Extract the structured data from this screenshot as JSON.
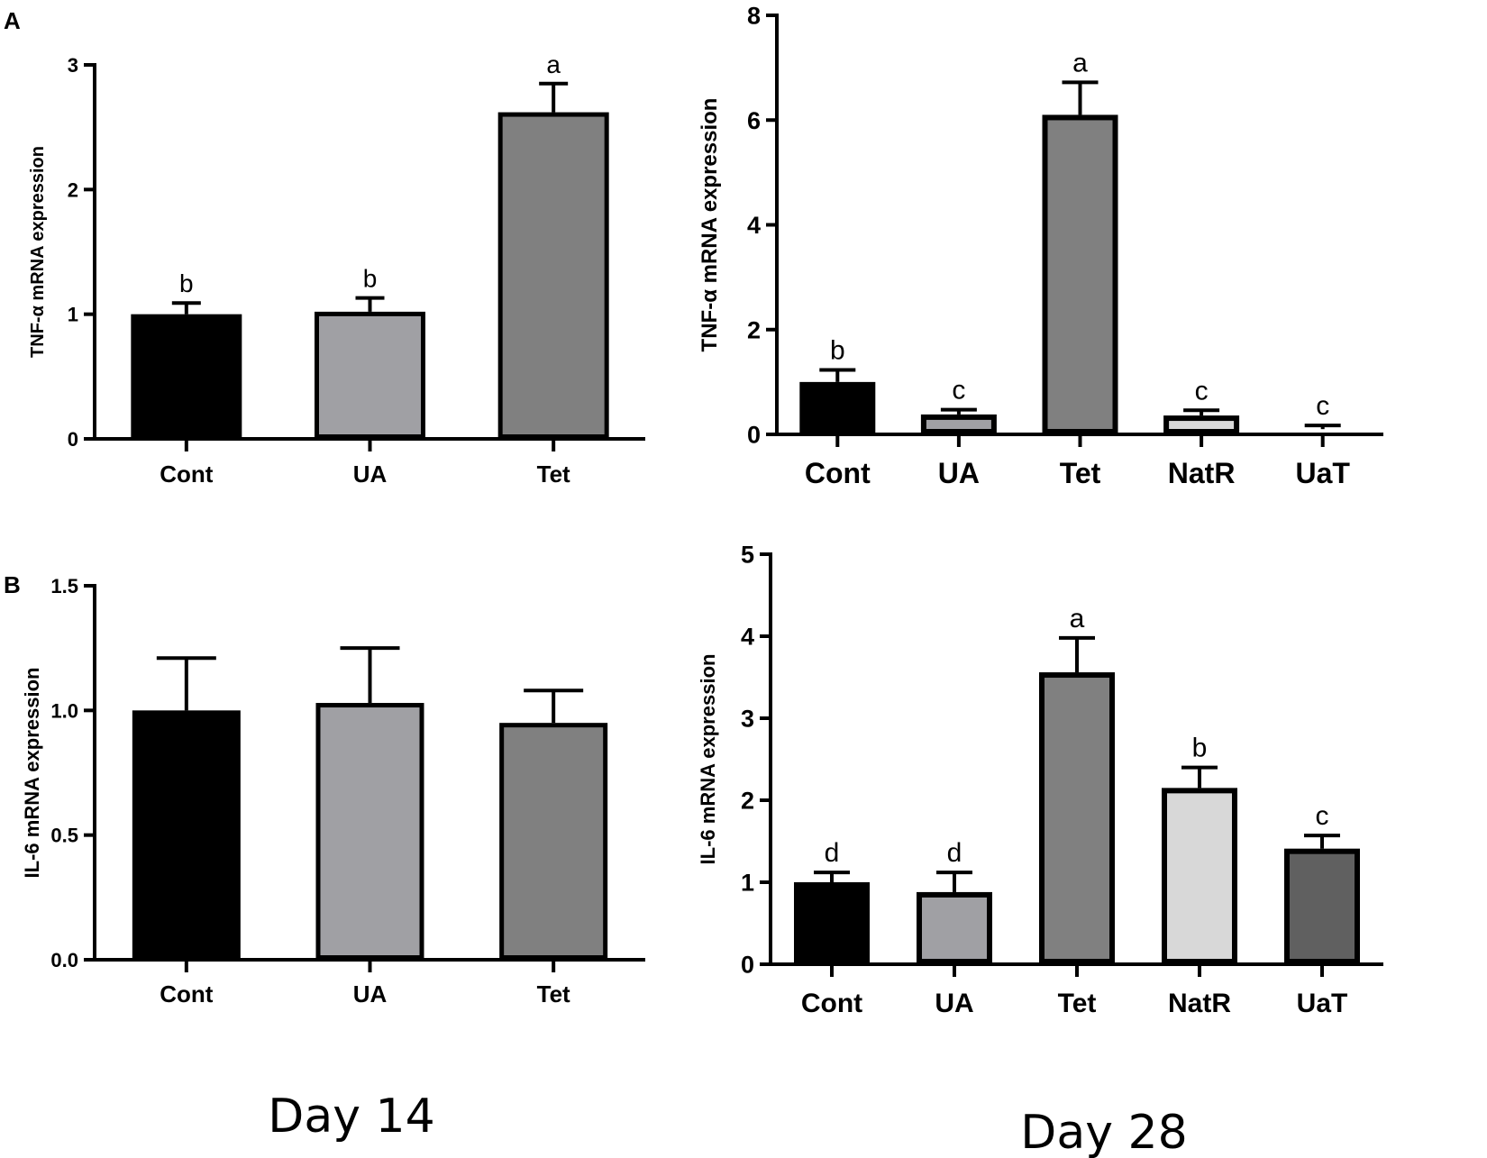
{
  "panel_labels": {
    "A": "A",
    "B": "B"
  },
  "day_labels": {
    "day14": "Day 14",
    "day28": "Day 28"
  },
  "colors": {
    "Cont": "#000000",
    "UA": "#a0a0a4",
    "Tet": "#808080",
    "NatR": "#d8d8d8",
    "UaT": "#606060"
  },
  "chart_data": [
    {
      "id": "A-day14",
      "type": "bar",
      "title": "",
      "xlabel": "",
      "ylabel": "TNF-α mRNA expression",
      "ylim": [
        0,
        3
      ],
      "yticks": [
        0,
        1,
        2,
        3
      ],
      "ytick_labels": [
        "0",
        "1",
        "2",
        "3"
      ],
      "categories": [
        "Cont",
        "UA",
        "Tet"
      ],
      "values": [
        1.0,
        1.02,
        2.62
      ],
      "errors": [
        0.09,
        0.11,
        0.23
      ],
      "letters": [
        "b",
        "b",
        "a"
      ]
    },
    {
      "id": "A-day28",
      "type": "bar",
      "title": "",
      "xlabel": "",
      "ylabel": "TNF-α mRNA expression",
      "ylim": [
        0,
        8
      ],
      "yticks": [
        0,
        2,
        4,
        6,
        8
      ],
      "ytick_labels": [
        "0",
        "2",
        "4",
        "6",
        "8"
      ],
      "categories": [
        "Cont",
        "UA",
        "Tet",
        "NatR",
        "UaT"
      ],
      "values": [
        1.0,
        0.38,
        6.1,
        0.36,
        0.1
      ],
      "errors": [
        0.23,
        0.09,
        0.62,
        0.1,
        0.07
      ],
      "letters": [
        "b",
        "c",
        "a",
        "c",
        "c"
      ]
    },
    {
      "id": "B-day14",
      "type": "bar",
      "title": "",
      "xlabel": "",
      "ylabel": "IL-6 mRNA expression",
      "ylim": [
        0,
        1.5
      ],
      "yticks": [
        0,
        0.5,
        1.0,
        1.5
      ],
      "ytick_labels": [
        "0.0",
        "0.5",
        "1.0",
        "1.5"
      ],
      "categories": [
        "Cont",
        "UA",
        "Tet"
      ],
      "values": [
        1.0,
        1.03,
        0.95
      ],
      "errors": [
        0.21,
        0.22,
        0.13
      ],
      "letters": [
        "",
        "",
        ""
      ]
    },
    {
      "id": "B-day28",
      "type": "bar",
      "title": "",
      "xlabel": "",
      "ylabel": "IL-6 mRNA expression",
      "ylim": [
        0,
        5
      ],
      "yticks": [
        0,
        1,
        2,
        3,
        4,
        5
      ],
      "ytick_labels": [
        "0",
        "1",
        "2",
        "3",
        "4",
        "5"
      ],
      "categories": [
        "Cont",
        "UA",
        "Tet",
        "NatR",
        "UaT"
      ],
      "values": [
        1.0,
        0.88,
        3.56,
        2.15,
        1.41
      ],
      "errors": [
        0.12,
        0.24,
        0.42,
        0.25,
        0.16
      ],
      "letters": [
        "d",
        "d",
        "a",
        "b",
        "c"
      ]
    }
  ]
}
